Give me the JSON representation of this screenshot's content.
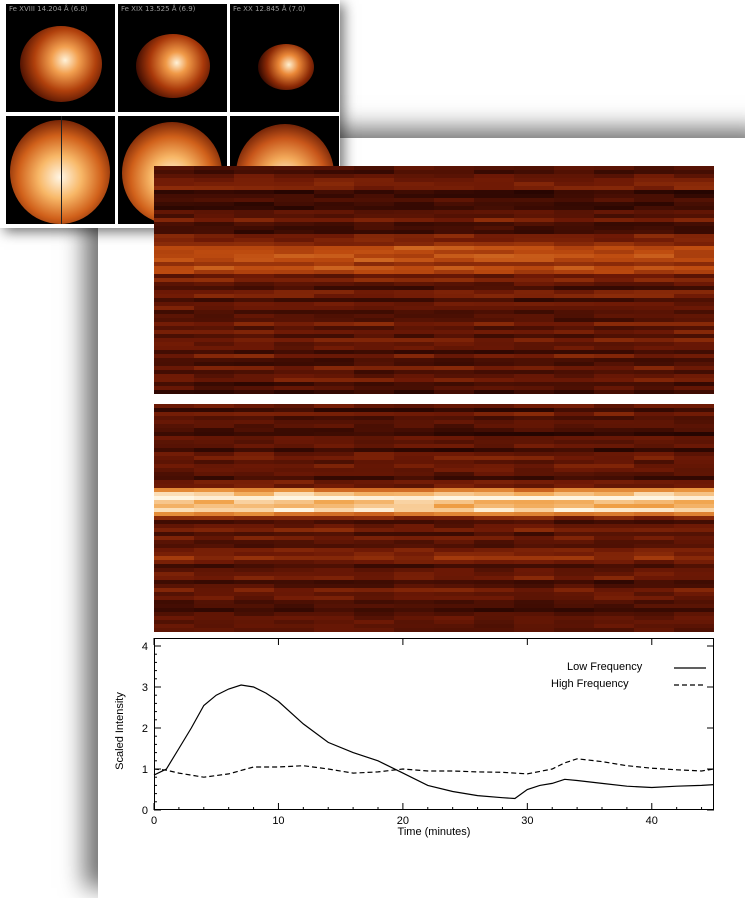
{
  "thumbnails": {
    "labels": [
      "Fe XVIII 14.204 Å (6.8)",
      "Fe XIX 13.525 Å (6.9)",
      "Fe XX 12.845 Å (7.0)"
    ]
  },
  "colors": {
    "heat_dark": "#1a0000",
    "heat_mid": "#b13f0c",
    "heat_bright": "#fff4e0"
  },
  "chart_data": {
    "type": "line",
    "title": "",
    "xlabel": "Time (minutes)",
    "ylabel": "Scaled Intensity",
    "xlim": [
      0,
      45
    ],
    "ylim": [
      0,
      4
    ],
    "xticks": [
      0,
      10,
      20,
      30,
      40
    ],
    "yticks": [
      0,
      1,
      2,
      3,
      4
    ],
    "legend_position": "top-right",
    "series": [
      {
        "name": "Low Frequency",
        "style": "solid",
        "x": [
          0,
          1,
          2,
          3,
          4,
          5,
          6,
          7,
          8,
          9,
          10,
          12,
          14,
          16,
          18,
          20,
          22,
          24,
          26,
          28,
          29,
          30,
          31,
          32,
          33,
          34,
          36,
          38,
          40,
          42,
          44,
          45
        ],
        "y": [
          0.85,
          1.0,
          1.5,
          2.0,
          2.55,
          2.8,
          2.95,
          3.05,
          3.0,
          2.85,
          2.65,
          2.1,
          1.65,
          1.4,
          1.2,
          0.9,
          0.6,
          0.45,
          0.35,
          0.3,
          0.28,
          0.5,
          0.6,
          0.65,
          0.75,
          0.72,
          0.65,
          0.58,
          0.55,
          0.58,
          0.6,
          0.62
        ]
      },
      {
        "name": "High Frequency",
        "style": "dashed",
        "x": [
          0,
          1,
          2,
          4,
          6,
          8,
          10,
          12,
          14,
          16,
          18,
          20,
          22,
          24,
          26,
          28,
          30,
          32,
          33,
          34,
          36,
          38,
          40,
          42,
          44,
          45
        ],
        "y": [
          1.0,
          0.97,
          0.9,
          0.8,
          0.88,
          1.05,
          1.05,
          1.08,
          1.0,
          0.9,
          0.93,
          1.0,
          0.95,
          0.95,
          0.93,
          0.92,
          0.88,
          1.0,
          1.15,
          1.25,
          1.18,
          1.08,
          1.02,
          0.98,
          0.95,
          1.0
        ]
      }
    ]
  }
}
